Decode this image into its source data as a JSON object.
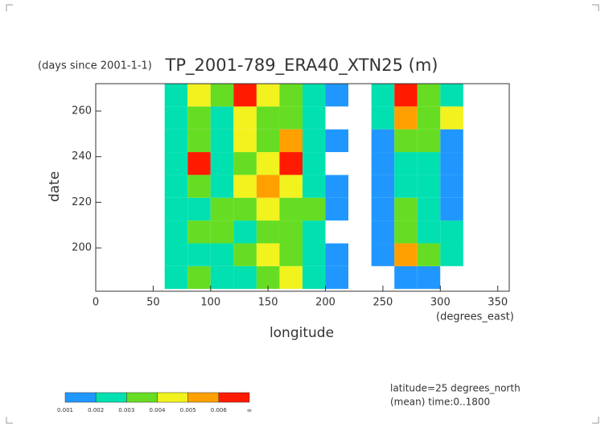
{
  "chart_data": {
    "type": "heatmap",
    "title": "TP_2001-789_ERA40_XTN25 (m)",
    "y_unit_label": "(days since 2001-1-1)",
    "x_label": "longitude",
    "x_unit_label": "(degrees_east)",
    "y_label": "date",
    "annotations": [
      "latitude=25 degrees_north",
      "(mean) time:0..1800"
    ],
    "xlim": [
      0,
      360
    ],
    "ylim": [
      181,
      272
    ],
    "xticks": [
      0,
      50,
      100,
      150,
      200,
      250,
      300,
      350
    ],
    "yticks": [
      200,
      220,
      240,
      260
    ],
    "x_bins": [
      0,
      20,
      40,
      60,
      80,
      100,
      120,
      140,
      160,
      180,
      200,
      220,
      240,
      260,
      280,
      300,
      320,
      340,
      360
    ],
    "y_bins": [
      182,
      192,
      202,
      212,
      222,
      232,
      242,
      252,
      262,
      272
    ],
    "levels": [
      0.001,
      0.002,
      0.003,
      0.004,
      0.005,
      0.006
    ],
    "colorbar_max_label": "∞",
    "colors": [
      "#2097ff",
      "#00e0b0",
      "#66dd22",
      "#f2f21e",
      "#ffa000",
      "#ff1a00"
    ],
    "z": [
      [
        0,
        0,
        0,
        0.002,
        0.003,
        0.002,
        0.002,
        0.003,
        0.004,
        0.002,
        0.001,
        0,
        0,
        0.001,
        0.001,
        0,
        0,
        0
      ],
      [
        0,
        0,
        0,
        0.002,
        0.002,
        0.002,
        0.003,
        0.004,
        0.003,
        0.002,
        0.001,
        0,
        0.001,
        0.005,
        0.003,
        0.002,
        0,
        0
      ],
      [
        0,
        0,
        0,
        0.002,
        0.003,
        0.003,
        0.002,
        0.003,
        0.003,
        0.002,
        0,
        0,
        0.001,
        0.003,
        0.002,
        0.002,
        0,
        0
      ],
      [
        0,
        0,
        0,
        0.002,
        0.002,
        0.003,
        0.003,
        0.004,
        0.003,
        0.003,
        0.001,
        0,
        0.001,
        0.003,
        0.002,
        0.001,
        0,
        0
      ],
      [
        0,
        0,
        0,
        0.002,
        0.003,
        0.002,
        0.004,
        0.005,
        0.004,
        0.002,
        0.001,
        0,
        0.001,
        0.002,
        0.002,
        0.001,
        0,
        0
      ],
      [
        0,
        0,
        0,
        0.002,
        0.006,
        0.002,
        0.003,
        0.004,
        0.006,
        0.002,
        0,
        0,
        0.001,
        0.002,
        0.002,
        0.001,
        0,
        0
      ],
      [
        0,
        0,
        0,
        0.002,
        0.003,
        0.002,
        0.004,
        0.003,
        0.005,
        0.002,
        0.001,
        0,
        0.001,
        0.003,
        0.003,
        0.001,
        0,
        0
      ],
      [
        0,
        0,
        0,
        0.002,
        0.003,
        0.002,
        0.004,
        0.003,
        0.003,
        0.002,
        0,
        0,
        0.002,
        0.005,
        0.003,
        0.004,
        0,
        0
      ],
      [
        0,
        0,
        0,
        0.002,
        0.004,
        0.003,
        0.006,
        0.004,
        0.003,
        0.002,
        0.001,
        0,
        0.002,
        0.006,
        0.003,
        0.002,
        0,
        0
      ]
    ]
  }
}
